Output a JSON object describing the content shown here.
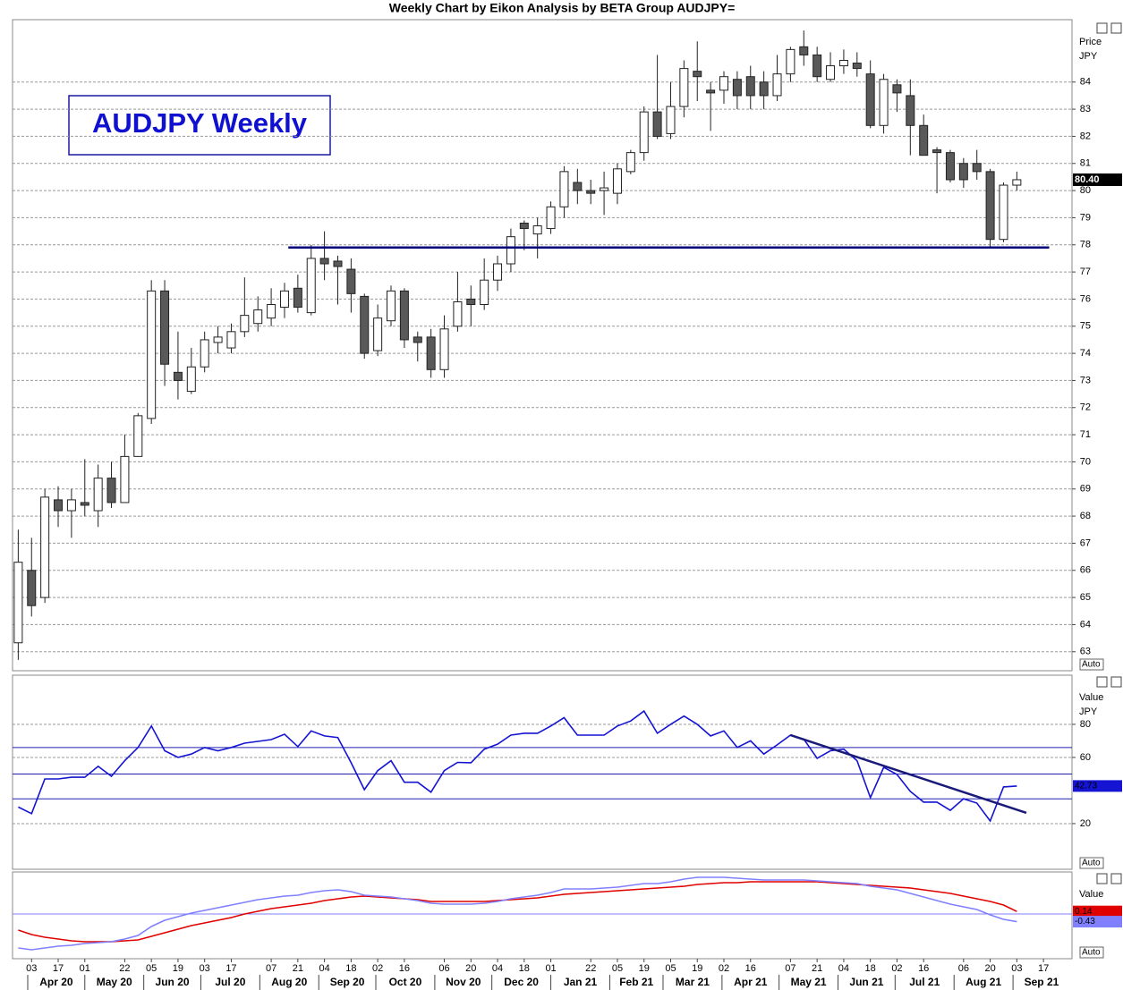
{
  "chart_data": [
    {
      "type": "candlestick",
      "title": "Weekly Chart by Eikon Analysis by BETA Group AUDJPY=",
      "annotation": "AUDJPY Weekly",
      "axis_labels": [
        "Price",
        "JPY"
      ],
      "button": "Auto",
      "up_color": "#ffffff",
      "down_color": "#595959",
      "x": [
        "2020-03-27",
        "2020-04-03",
        "2020-04-10",
        "2020-04-17",
        "2020-04-24",
        "2020-05-01",
        "2020-05-08",
        "2020-05-15",
        "2020-05-22",
        "2020-05-29",
        "2020-06-05",
        "2020-06-12",
        "2020-06-19",
        "2020-06-26",
        "2020-07-03",
        "2020-07-10",
        "2020-07-17",
        "2020-07-24",
        "2020-07-31",
        "2020-08-07",
        "2020-08-14",
        "2020-08-21",
        "2020-08-28",
        "2020-09-04",
        "2020-09-11",
        "2020-09-18",
        "2020-09-25",
        "2020-10-02",
        "2020-10-09",
        "2020-10-16",
        "2020-10-23",
        "2020-10-30",
        "2020-11-06",
        "2020-11-13",
        "2020-11-20",
        "2020-11-27",
        "2020-12-04",
        "2020-12-11",
        "2020-12-18",
        "2020-12-25",
        "2021-01-01",
        "2021-01-08",
        "2021-01-15",
        "2021-01-22",
        "2021-01-29",
        "2021-02-05",
        "2021-02-12",
        "2021-02-19",
        "2021-02-26",
        "2021-03-05",
        "2021-03-12",
        "2021-03-19",
        "2021-03-26",
        "2021-04-02",
        "2021-04-09",
        "2021-04-16",
        "2021-04-23",
        "2021-04-30",
        "2021-05-07",
        "2021-05-14",
        "2021-05-21",
        "2021-05-28",
        "2021-06-04",
        "2021-06-11",
        "2021-06-18",
        "2021-06-25",
        "2021-07-02",
        "2021-07-09",
        "2021-07-16",
        "2021-07-23",
        "2021-07-30",
        "2021-08-06",
        "2021-08-13",
        "2021-08-20",
        "2021-08-27",
        "2021-09-03"
      ],
      "open": [
        63.33,
        66.0,
        65.0,
        68.6,
        68.2,
        68.5,
        68.2,
        69.4,
        68.5,
        70.2,
        71.6,
        76.3,
        73.3,
        72.6,
        73.5,
        74.4,
        74.2,
        74.8,
        75.1,
        75.3,
        75.7,
        76.4,
        75.5,
        77.5,
        77.4,
        77.1,
        76.1,
        74.1,
        75.2,
        76.3,
        74.6,
        74.6,
        73.4,
        75.0,
        76.0,
        75.8,
        76.7,
        77.3,
        78.8,
        78.4,
        78.6,
        79.4,
        80.3,
        80.0,
        80.0,
        79.9,
        80.7,
        81.4,
        82.9,
        82.1,
        83.1,
        84.4,
        83.7,
        83.7,
        84.1,
        84.2,
        84.0,
        83.5,
        84.3,
        85.3,
        85.0,
        84.1,
        84.6,
        84.7,
        84.3,
        82.4,
        83.9,
        83.5,
        82.4,
        81.5,
        81.4,
        81.0,
        81.0,
        80.7,
        78.2,
        80.2
      ],
      "high": [
        67.5,
        67.2,
        69.0,
        69.1,
        69.0,
        70.1,
        69.9,
        70.0,
        71.0,
        71.8,
        76.7,
        76.7,
        74.8,
        74.2,
        74.8,
        75.0,
        75.1,
        76.8,
        76.1,
        76.4,
        76.6,
        76.9,
        78.0,
        78.5,
        77.6,
        77.5,
        76.2,
        75.8,
        76.5,
        76.4,
        74.8,
        74.9,
        75.4,
        77.0,
        76.5,
        77.5,
        77.6,
        78.6,
        78.9,
        79.0,
        79.6,
        80.9,
        80.8,
        80.4,
        80.7,
        81.0,
        81.5,
        83.1,
        85.0,
        84.0,
        84.8,
        85.5,
        84.0,
        84.4,
        84.4,
        84.6,
        84.4,
        85.0,
        85.3,
        85.9,
        85.3,
        85.1,
        85.2,
        85.1,
        84.8,
        84.3,
        84.1,
        84.1,
        82.8,
        81.6,
        81.5,
        81.2,
        81.5,
        80.8,
        80.3,
        80.7
      ],
      "low": [
        62.7,
        64.3,
        64.8,
        67.6,
        67.2,
        68.0,
        67.6,
        68.3,
        68.5,
        70.2,
        71.4,
        72.8,
        72.3,
        72.5,
        73.3,
        74.0,
        74.0,
        74.6,
        74.8,
        75.0,
        75.3,
        75.5,
        75.4,
        76.7,
        75.8,
        75.5,
        73.8,
        73.9,
        75.0,
        74.2,
        73.7,
        73.1,
        73.1,
        74.8,
        75.0,
        75.6,
        76.3,
        77.0,
        77.8,
        77.5,
        78.4,
        79.0,
        79.5,
        79.5,
        79.1,
        79.5,
        80.6,
        81.1,
        81.9,
        81.9,
        82.7,
        83.3,
        82.2,
        83.2,
        83.0,
        83.0,
        83.0,
        83.3,
        84.0,
        84.6,
        84.0,
        84.0,
        84.3,
        84.2,
        82.3,
        82.1,
        82.9,
        81.3,
        81.3,
        79.9,
        80.3,
        80.1,
        80.4,
        77.9,
        78.1,
        80.0
      ],
      "close": [
        66.3,
        64.7,
        68.7,
        68.2,
        68.6,
        68.4,
        69.4,
        68.5,
        70.2,
        71.7,
        76.3,
        73.6,
        73.0,
        73.5,
        74.5,
        74.6,
        74.8,
        75.4,
        75.6,
        75.8,
        76.3,
        75.7,
        77.5,
        77.3,
        77.2,
        76.2,
        74.0,
        75.3,
        76.3,
        74.5,
        74.4,
        73.4,
        74.9,
        75.9,
        75.8,
        76.7,
        77.3,
        78.3,
        78.6,
        78.7,
        79.4,
        80.7,
        80.0,
        79.9,
        80.1,
        80.8,
        81.4,
        82.9,
        82.0,
        83.1,
        84.5,
        84.2,
        83.6,
        84.2,
        83.5,
        83.5,
        83.5,
        84.3,
        85.2,
        85.0,
        84.2,
        84.6,
        84.8,
        84.5,
        82.4,
        84.1,
        83.6,
        82.4,
        81.3,
        81.4,
        80.4,
        80.4,
        80.7,
        78.2,
        80.2,
        80.4
      ],
      "last_label": {
        "value": 80.4,
        "label": "80.40"
      },
      "last_label_color": "#000000",
      "lines": [
        {
          "x": [
            "2020-08-16",
            "2021-09-20"
          ],
          "y": [
            77.9,
            77.9
          ],
          "color": "#00007a"
        }
      ],
      "xlim": [
        "2020-03-24",
        "2021-10-02"
      ],
      "xticks": [
        {
          "value": "2020-04-03",
          "label": "03"
        },
        {
          "value": "2020-04-17",
          "label": "17"
        },
        {
          "value": "2020-05-01",
          "label": "01"
        },
        {
          "value": "2020-05-22",
          "label": "22"
        },
        {
          "value": "2020-06-05",
          "label": "05"
        },
        {
          "value": "2020-06-19",
          "label": "19"
        },
        {
          "value": "2020-07-03",
          "label": "03"
        },
        {
          "value": "2020-07-17",
          "label": "17"
        },
        {
          "value": "2020-08-07",
          "label": "07"
        },
        {
          "value": "2020-08-21",
          "label": "21"
        },
        {
          "value": "2020-09-04",
          "label": "04"
        },
        {
          "value": "2020-09-18",
          "label": "18"
        },
        {
          "value": "2020-10-02",
          "label": "02"
        },
        {
          "value": "2020-10-16",
          "label": "16"
        },
        {
          "value": "2020-11-06",
          "label": "06"
        },
        {
          "value": "2020-11-20",
          "label": "20"
        },
        {
          "value": "2020-12-04",
          "label": "04"
        },
        {
          "value": "2020-12-18",
          "label": "18"
        },
        {
          "value": "2021-01-01",
          "label": "01"
        },
        {
          "value": "2021-01-22",
          "label": "22"
        },
        {
          "value": "2021-02-05",
          "label": "05"
        },
        {
          "value": "2021-02-19",
          "label": "19"
        },
        {
          "value": "2021-03-05",
          "label": "05"
        },
        {
          "value": "2021-03-19",
          "label": "19"
        },
        {
          "value": "2021-04-02",
          "label": "02"
        },
        {
          "value": "2021-04-16",
          "label": "16"
        },
        {
          "value": "2021-05-07",
          "label": "07"
        },
        {
          "value": "2021-05-21",
          "label": "21"
        },
        {
          "value": "2021-06-04",
          "label": "04"
        },
        {
          "value": "2021-06-18",
          "label": "18"
        },
        {
          "value": "2021-07-02",
          "label": "02"
        },
        {
          "value": "2021-07-16",
          "label": "16"
        },
        {
          "value": "2021-08-06",
          "label": "06"
        },
        {
          "value": "2021-08-20",
          "label": "20"
        },
        {
          "value": "2021-09-03",
          "label": "03"
        },
        {
          "value": "2021-09-17",
          "label": "17"
        }
      ],
      "month_ticks": [
        {
          "value": "2020-04",
          "label": "Apr 20"
        },
        {
          "value": "2020-05",
          "label": "May 20"
        },
        {
          "value": "2020-06",
          "label": "Jun 20"
        },
        {
          "value": "2020-07",
          "label": "Jul 20"
        },
        {
          "value": "2020-08",
          "label": "Aug 20"
        },
        {
          "value": "2020-09",
          "label": "Sep 20"
        },
        {
          "value": "2020-10",
          "label": "Oct 20"
        },
        {
          "value": "2020-11",
          "label": "Nov 20"
        },
        {
          "value": "2020-12",
          "label": "Dec 20"
        },
        {
          "value": "2021-01",
          "label": "Jan 21"
        },
        {
          "value": "2021-02",
          "label": "Feb 21"
        },
        {
          "value": "2021-03",
          "label": "Mar 21"
        },
        {
          "value": "2021-04",
          "label": "Apr 21"
        },
        {
          "value": "2021-05",
          "label": "May 21"
        },
        {
          "value": "2021-06",
          "label": "Jun 21"
        },
        {
          "value": "2021-07",
          "label": "Jul 21"
        },
        {
          "value": "2021-08",
          "label": "Aug 21"
        },
        {
          "value": "2021-09",
          "label": "Sep 21"
        }
      ],
      "ylim": [
        62.3,
        86.3
      ],
      "yticks": [
        63,
        64,
        65,
        66,
        67,
        68,
        69,
        70,
        71,
        72,
        73,
        74,
        75,
        76,
        77,
        78,
        79,
        80,
        81,
        82,
        83,
        84
      ],
      "grid": true
    },
    {
      "type": "line",
      "axis_labels": [
        "Value",
        "JPY"
      ],
      "button": "Auto",
      "series": [
        {
          "color": "#1414d2",
          "values": [
            30,
            26,
            47,
            47,
            48,
            48,
            54.6,
            48.6,
            58,
            66,
            79,
            64,
            60,
            62,
            66,
            64,
            66,
            68.6,
            69.7,
            70.8,
            74,
            66.5,
            76,
            73,
            72,
            56.8,
            40.5,
            52,
            58,
            45,
            45,
            39,
            52,
            57,
            56.8,
            65,
            68,
            73.5,
            74.6,
            74.6,
            79,
            84,
            73.5,
            73.5,
            73.5,
            79,
            82,
            88,
            74.6,
            80,
            85,
            80,
            73,
            76,
            66,
            70,
            62,
            67.6,
            73.5,
            71,
            59.5,
            64,
            65,
            58,
            35.7,
            54,
            49.7,
            39.5,
            33,
            33,
            28,
            35,
            32.4,
            21.6,
            42.2,
            42.73
          ]
        }
      ],
      "levels": [
        66,
        50,
        35
      ],
      "level_color": "#2020b0",
      "lines": [
        {
          "x": [
            "2021-05-07",
            "2021-09-08"
          ],
          "y": [
            73.5,
            26.5
          ],
          "color": "#1a1a7a"
        }
      ],
      "ylim": [
        -7.6,
        109.7
      ],
      "yticks": [
        20,
        60,
        80
      ],
      "grid": true
    },
    {
      "type": "line",
      "axis_labels": [
        "Value"
      ],
      "button": "Auto",
      "series": [
        {
          "color": "#e00000",
          "values": [
            -0.9,
            -1.15,
            -1.3,
            -1.4,
            -1.5,
            -1.55,
            -1.55,
            -1.55,
            -1.5,
            -1.45,
            -1.25,
            -1.05,
            -0.85,
            -0.65,
            -0.5,
            -0.35,
            -0.2,
            0,
            0.15,
            0.3,
            0.4,
            0.5,
            0.6,
            0.75,
            0.85,
            0.95,
            1.0,
            0.95,
            0.9,
            0.85,
            0.8,
            0.7,
            0.7,
            0.7,
            0.7,
            0.7,
            0.75,
            0.8,
            0.85,
            0.9,
            1.0,
            1.1,
            1.15,
            1.2,
            1.25,
            1.3,
            1.35,
            1.4,
            1.45,
            1.5,
            1.55,
            1.65,
            1.7,
            1.75,
            1.75,
            1.8,
            1.8,
            1.8,
            1.8,
            1.8,
            1.8,
            1.75,
            1.7,
            1.65,
            1.6,
            1.55,
            1.5,
            1.45,
            1.35,
            1.25,
            1.15,
            1.0,
            0.85,
            0.7,
            0.5,
            0.14
          ]
        },
        {
          "color": "#8080ff",
          "values": [
            -1.9,
            -2.0,
            -1.9,
            -1.8,
            -1.75,
            -1.65,
            -1.6,
            -1.55,
            -1.4,
            -1.2,
            -0.7,
            -0.35,
            -0.15,
            0.05,
            0.2,
            0.35,
            0.5,
            0.65,
            0.8,
            0.9,
            1.0,
            1.05,
            1.2,
            1.3,
            1.35,
            1.25,
            1.05,
            1.0,
            0.95,
            0.85,
            0.75,
            0.6,
            0.55,
            0.55,
            0.55,
            0.6,
            0.7,
            0.85,
            0.95,
            1.05,
            1.2,
            1.4,
            1.4,
            1.4,
            1.45,
            1.5,
            1.6,
            1.7,
            1.7,
            1.8,
            1.95,
            2.05,
            2.05,
            2.05,
            2.0,
            1.95,
            1.9,
            1.9,
            1.9,
            1.9,
            1.85,
            1.8,
            1.75,
            1.7,
            1.55,
            1.45,
            1.35,
            1.15,
            0.95,
            0.75,
            0.55,
            0.4,
            0.25,
            -0.05,
            -0.3,
            -0.43
          ]
        }
      ],
      "levels": [
        0
      ],
      "level_color": "#8080ff",
      "ylim": [
        -2.5,
        2.35
      ],
      "yticks": [],
      "grid": false
    }
  ]
}
